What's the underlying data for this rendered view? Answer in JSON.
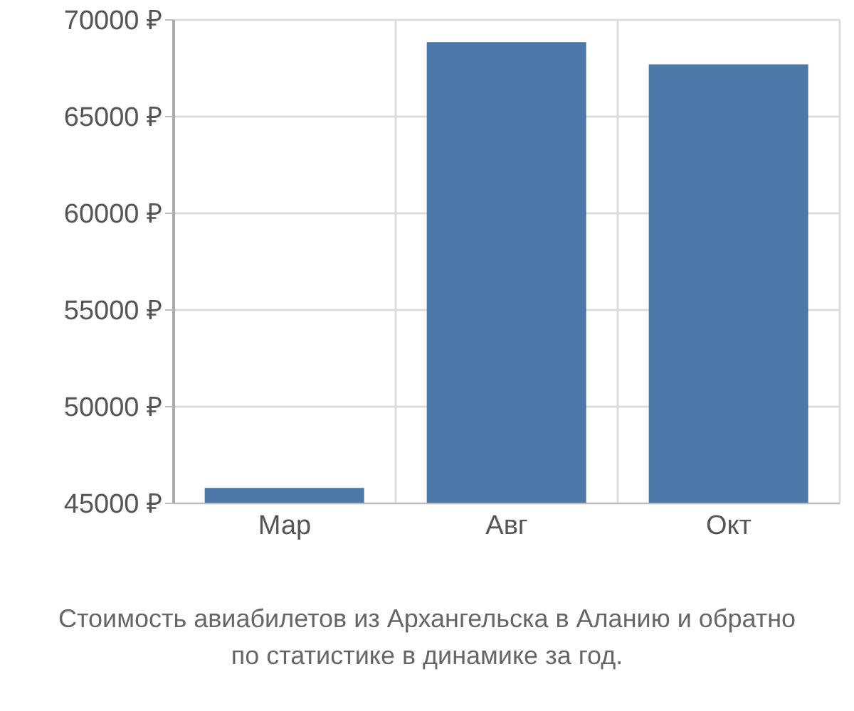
{
  "chart_data": {
    "type": "bar",
    "title": "Стоимость авиабилетов из Архангельска в Аланию и обратно",
    "subtitle": "по статистике в динамике за год.",
    "categories": [
      "Мар",
      "Авг",
      "Окт"
    ],
    "values": [
      45800,
      68850,
      67700
    ],
    "color": "#4c78a8",
    "ylim": [
      45000,
      70000
    ],
    "yticks": [
      {
        "value": 45000,
        "label": "45000 ₽"
      },
      {
        "value": 50000,
        "label": "50000 ₽"
      },
      {
        "value": 55000,
        "label": "55000 ₽"
      },
      {
        "value": 60000,
        "label": "60000 ₽"
      },
      {
        "value": 65000,
        "label": "65000 ₽"
      },
      {
        "value": 70000,
        "label": "70000 ₽"
      }
    ],
    "grid": true
  }
}
